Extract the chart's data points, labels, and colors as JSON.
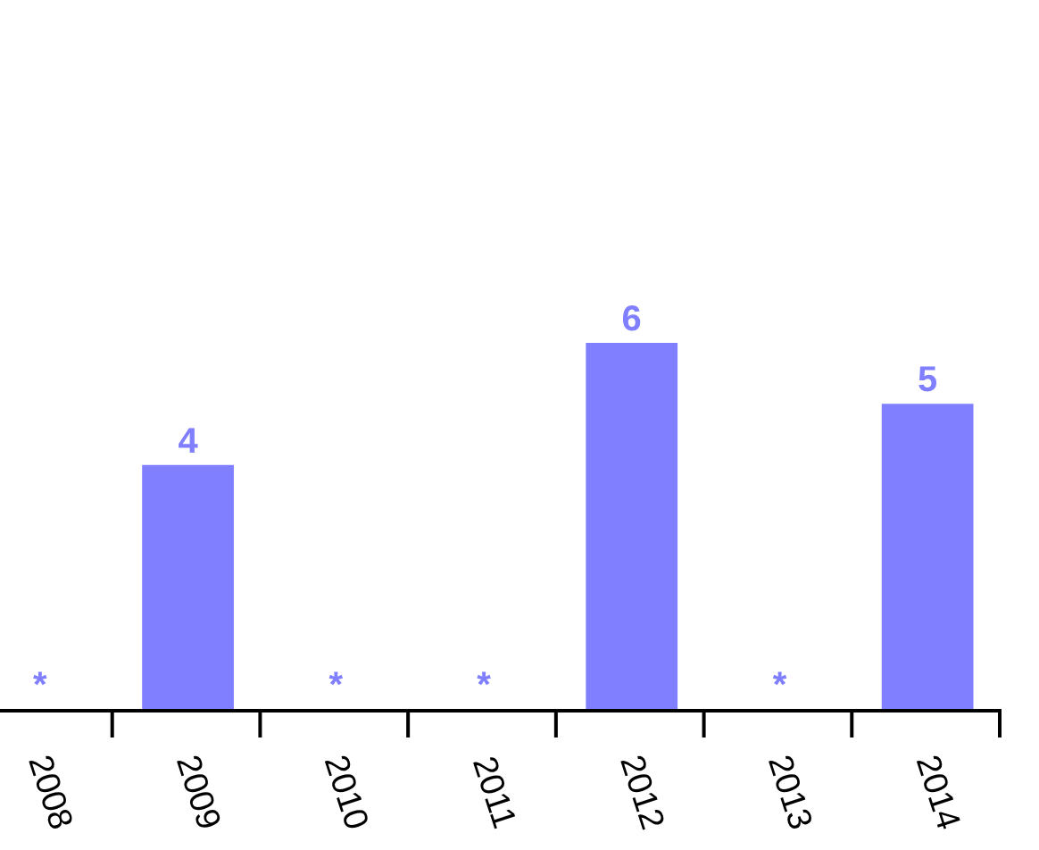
{
  "chart_data": {
    "type": "bar",
    "categories": [
      "2008",
      "2009",
      "2010",
      "2011",
      "2012",
      "2013",
      "2014"
    ],
    "values": [
      null,
      4,
      null,
      null,
      6,
      null,
      5
    ],
    "value_labels": [
      "*",
      "4",
      "*",
      "*",
      "6",
      "*",
      "5"
    ],
    "color": "#7f7fff",
    "tick_labels": "x"
  }
}
